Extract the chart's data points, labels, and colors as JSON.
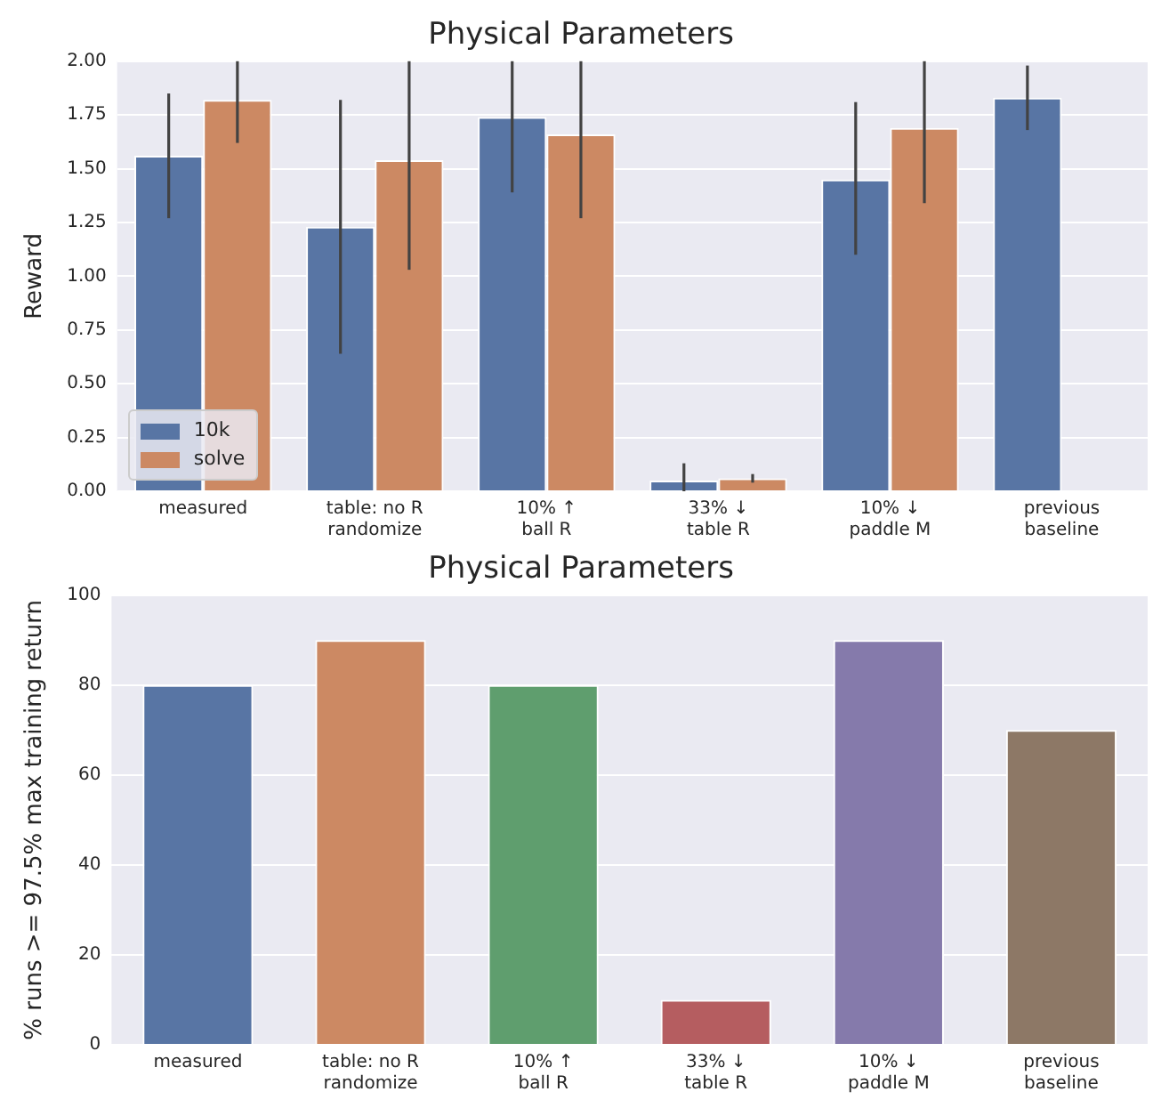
{
  "chart_data": [
    {
      "type": "bar",
      "title": "Physical Parameters",
      "ylabel": "Reward",
      "categories": [
        "measured",
        "table: no R\nrandomize",
        "10% ↑\nball R",
        "33% ↓\ntable R",
        "10% ↓\npaddle M",
        "previous\nbaseline"
      ],
      "series": [
        {
          "name": "10k",
          "color": "#5875a4",
          "values": [
            1.56,
            1.23,
            1.74,
            0.05,
            1.45,
            1.83
          ],
          "errors": [
            [
              1.27,
              1.85
            ],
            [
              0.64,
              1.82
            ],
            [
              1.39,
              2.0
            ],
            [
              0,
              0.13
            ],
            [
              1.1,
              1.81
            ],
            [
              1.68,
              1.98
            ]
          ]
        },
        {
          "name": "solve",
          "color": "#cc8963",
          "values": [
            1.82,
            1.54,
            1.66,
            0.06,
            1.69,
            null
          ],
          "errors": [
            [
              1.62,
              2.0
            ],
            [
              1.03,
              2.0
            ],
            [
              1.27,
              2.0
            ],
            [
              0.04,
              0.08
            ],
            [
              1.34,
              2.0
            ],
            null
          ]
        }
      ],
      "ylim": [
        0,
        2
      ],
      "yticks": [
        {
          "value": 0,
          "label": "0.00"
        },
        {
          "value": 0.25,
          "label": "0.25"
        },
        {
          "value": 0.5,
          "label": "0.50"
        },
        {
          "value": 0.75,
          "label": "0.75"
        },
        {
          "value": 1,
          "label": "1.00"
        },
        {
          "value": 1.25,
          "label": "1.25"
        },
        {
          "value": 1.5,
          "label": "1.50"
        },
        {
          "value": 1.75,
          "label": "1.75"
        },
        {
          "value": 2,
          "label": "2.00"
        }
      ],
      "grid": "y",
      "legend": "bottom left"
    },
    {
      "type": "bar",
      "title": "Physical Parameters",
      "ylabel": "% runs >= 97.5% max training return",
      "categories": [
        "measured",
        "table: no R\nrandomize",
        "10% ↑\nball R",
        "33% ↓\ntable R",
        "10% ↓\npaddle M",
        "previous\nbaseline"
      ],
      "values": [
        80,
        90,
        80,
        10,
        90,
        70
      ],
      "colors": [
        "#5875a4",
        "#cc8963",
        "#5f9e6e",
        "#b55d60",
        "#857aab",
        "#8d7866"
      ],
      "ylim": [
        0,
        100
      ],
      "yticks": [
        0,
        20,
        40,
        60,
        80,
        100
      ],
      "grid": "y"
    }
  ]
}
